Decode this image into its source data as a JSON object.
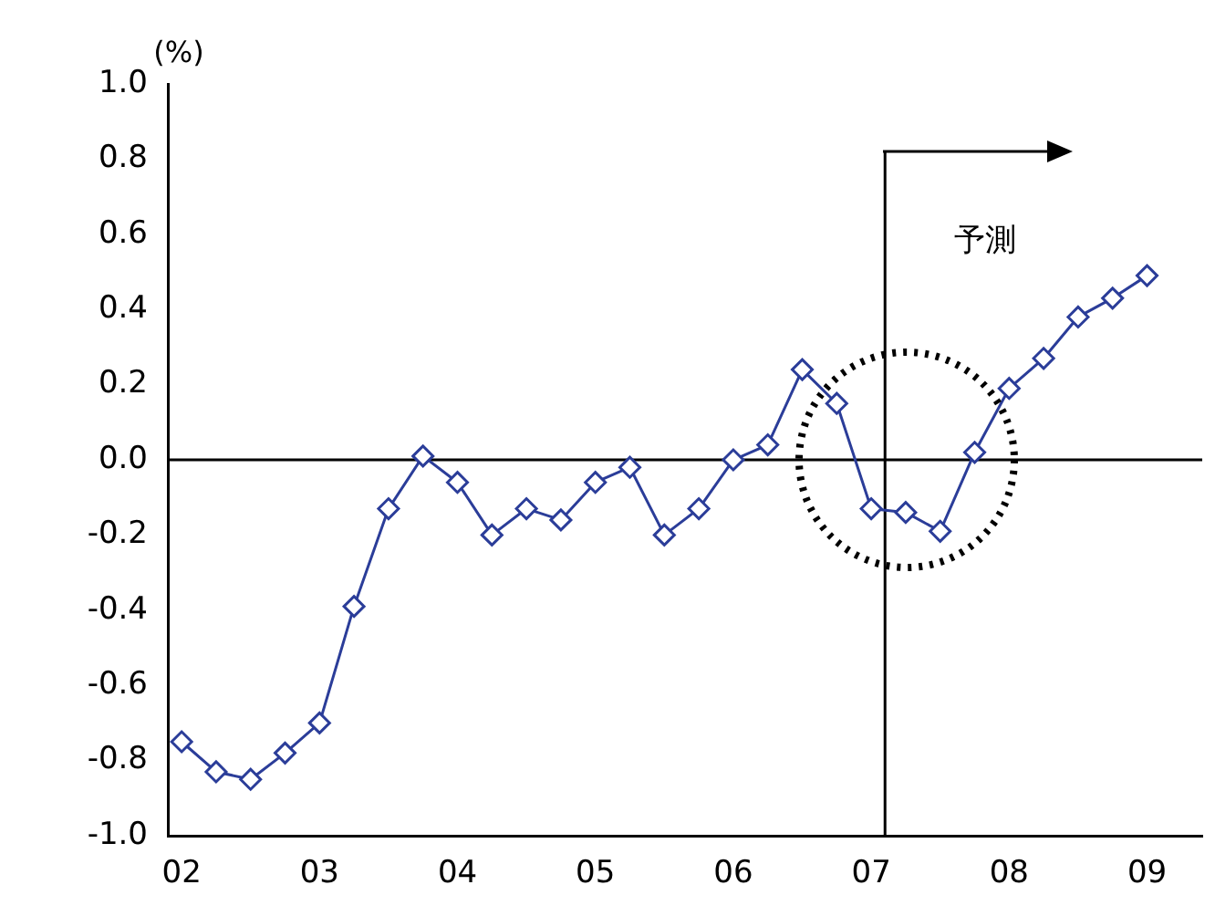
{
  "chart_data": {
    "type": "line",
    "ylabel": "(%)",
    "x": [
      2002,
      2002.25,
      2002.5,
      2002.75,
      2003,
      2003.25,
      2003.5,
      2003.75,
      2004,
      2004.25,
      2004.5,
      2004.75,
      2005,
      2005.25,
      2005.5,
      2005.75,
      2006,
      2006.25,
      2006.5,
      2006.75,
      2007,
      2007.25,
      2007.5,
      2007.75,
      2008,
      2008.25,
      2008.5,
      2008.75,
      2009
    ],
    "series": [
      {
        "color": "#2b3d99",
        "values": [
          -0.75,
          -0.83,
          -0.85,
          -0.78,
          -0.7,
          -0.39,
          -0.13,
          0.01,
          -0.06,
          -0.2,
          -0.13,
          -0.16,
          -0.06,
          -0.02,
          -0.2,
          -0.13,
          0.0,
          0.04,
          0.24,
          0.15,
          -0.13,
          -0.14,
          -0.19,
          0.02,
          0.19,
          0.27,
          0.38,
          0.43,
          0.49
        ]
      }
    ],
    "xlim": [
      2001.9,
      2009.4
    ],
    "xticks": [
      {
        "value": 2002,
        "label": "02"
      },
      {
        "value": 2003,
        "label": "03"
      },
      {
        "value": 2004,
        "label": "04"
      },
      {
        "value": 2005,
        "label": "05"
      },
      {
        "value": 2006,
        "label": "06"
      },
      {
        "value": 2007,
        "label": "07"
      },
      {
        "value": 2008,
        "label": "08"
      },
      {
        "value": 2009,
        "label": "09"
      }
    ],
    "ylim": [
      -1,
      1
    ],
    "yticks": [
      {
        "value": 1,
        "label": "1.0"
      },
      {
        "value": 0.8,
        "label": "0.8"
      },
      {
        "value": 0.6,
        "label": "0.6"
      },
      {
        "value": 0.4,
        "label": "0.4"
      },
      {
        "value": 0.2,
        "label": "0.2"
      },
      {
        "value": 0,
        "label": "0.0"
      },
      {
        "value": -0.2,
        "label": "-0.2"
      },
      {
        "value": -0.4,
        "label": "-0.4"
      },
      {
        "value": -0.6,
        "label": "-0.6"
      },
      {
        "value": -0.8,
        "label": "-0.8"
      },
      {
        "value": -1,
        "label": "-1.0"
      }
    ],
    "ref_lines": [
      {
        "axis": "y",
        "value": 0,
        "label": null,
        "color": "#000000"
      },
      {
        "axis": "x",
        "value": 2007.1,
        "label": "予測",
        "color": "#000000"
      }
    ],
    "grid": false,
    "legend": false,
    "marker": "diamond",
    "line_style": "solid"
  }
}
